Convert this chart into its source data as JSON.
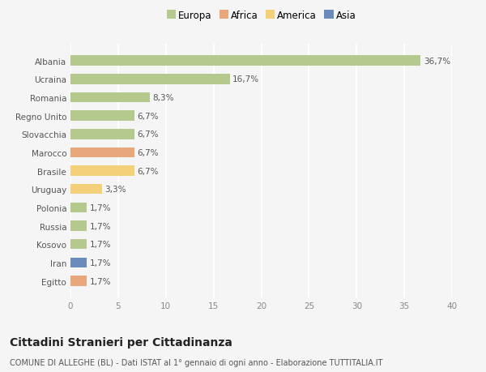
{
  "categories": [
    "Albania",
    "Ucraina",
    "Romania",
    "Regno Unito",
    "Slovacchia",
    "Marocco",
    "Brasile",
    "Uruguay",
    "Polonia",
    "Russia",
    "Kosovo",
    "Iran",
    "Egitto"
  ],
  "values": [
    36.7,
    16.7,
    8.3,
    6.7,
    6.7,
    6.7,
    6.7,
    3.3,
    1.7,
    1.7,
    1.7,
    1.7,
    1.7
  ],
  "labels": [
    "36,7%",
    "16,7%",
    "8,3%",
    "6,7%",
    "6,7%",
    "6,7%",
    "6,7%",
    "3,3%",
    "1,7%",
    "1,7%",
    "1,7%",
    "1,7%",
    "1,7%"
  ],
  "bar_colors": [
    "#b5c98e",
    "#b5c98e",
    "#b5c98e",
    "#b5c98e",
    "#b5c98e",
    "#e8a87c",
    "#f5d07a",
    "#f5d07a",
    "#b5c98e",
    "#b5c98e",
    "#b5c98e",
    "#6b8cba",
    "#e8a87c"
  ],
  "legend_labels": [
    "Europa",
    "Africa",
    "America",
    "Asia"
  ],
  "legend_colors": [
    "#b5c98e",
    "#e8a87c",
    "#f5d07a",
    "#6b8cba"
  ],
  "xlim": [
    0,
    40
  ],
  "xticks": [
    0,
    5,
    10,
    15,
    20,
    25,
    30,
    35,
    40
  ],
  "title": "Cittadini Stranieri per Cittadinanza",
  "subtitle": "COMUNE DI ALLEGHE (BL) - Dati ISTAT al 1° gennaio di ogni anno - Elaborazione TUTTITALIA.IT",
  "background_color": "#f5f5f5",
  "grid_color": "#ffffff",
  "bar_label_fontsize": 7.5,
  "label_fontsize": 7.5,
  "legend_fontsize": 8.5,
  "title_fontsize": 10,
  "subtitle_fontsize": 7
}
